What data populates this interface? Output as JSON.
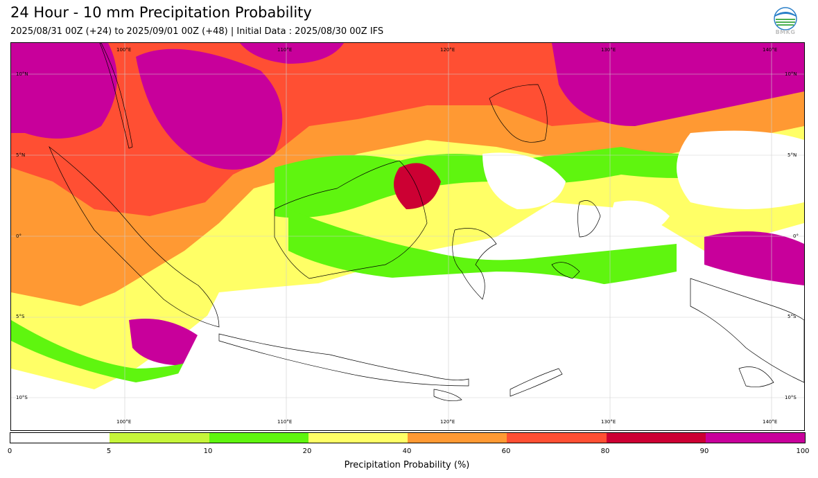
{
  "header": {
    "title": "24 Hour - 10 mm Precipitation Probability",
    "subtitle": "2025/08/31 00Z (+24) to 2025/09/01 00Z (+48) | Initial Data : 2025/08/30 00Z IFS",
    "logo_text": "BMKG"
  },
  "map": {
    "lon_ticks_top": [
      "100°E",
      "110°E",
      "120°E",
      "130°E",
      "140°E"
    ],
    "lon_ticks_bottom": [
      "100°E",
      "110°E",
      "120°E",
      "130°E",
      "140°E"
    ],
    "lat_ticks_left": [
      "10°N",
      "5°N",
      "0°",
      "5°S",
      "10°S"
    ],
    "lat_ticks_right": [
      "10°N",
      "5°N",
      "0°",
      "5°S",
      "10°S"
    ]
  },
  "colorbar": {
    "title": "Precipitation Probability (%)",
    "labels": [
      "0",
      "5",
      "10",
      "20",
      "40",
      "60",
      "80",
      "90",
      "100"
    ],
    "colors": [
      "#ffffff",
      "#c6f53a",
      "#5ff50f",
      "#ffff66",
      "#ff9933",
      "#ff4f33",
      "#cc0033",
      "#c8009b"
    ]
  }
}
